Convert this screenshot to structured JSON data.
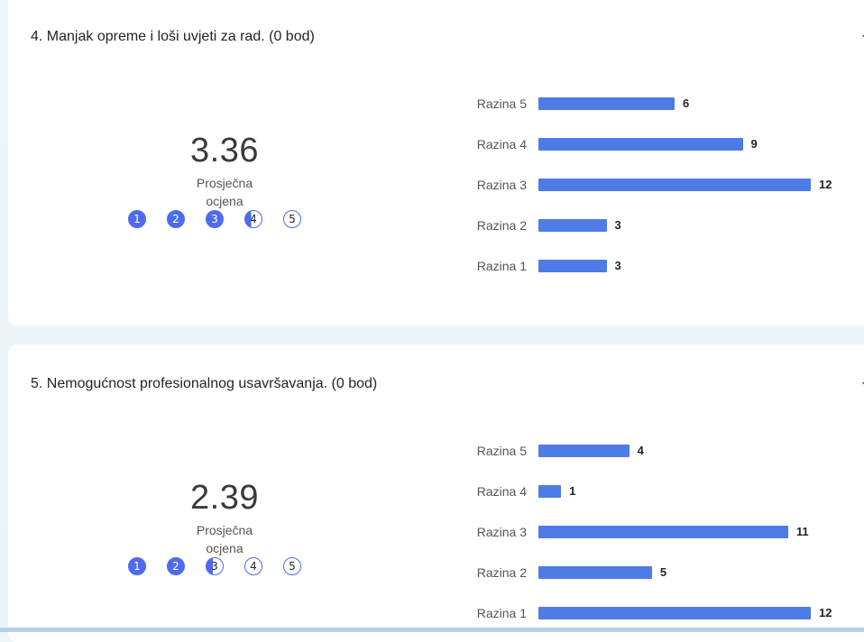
{
  "questions": [
    {
      "title": "4. Manjak opreme i loši uvjeti za rad. (0 bod)",
      "average": "3.36",
      "average_value": 3.36,
      "average_label": "Prosječna ocjena",
      "rating_circles": [
        "1",
        "2",
        "3",
        "4",
        "5"
      ],
      "bars": [
        {
          "label": "Razina 5",
          "count": 6
        },
        {
          "label": "Razina 4",
          "count": 9
        },
        {
          "label": "Razina 3",
          "count": 12
        },
        {
          "label": "Razina 2",
          "count": 3
        },
        {
          "label": "Razina 1",
          "count": 3
        }
      ]
    },
    {
      "title": "5. Nemogućnost profesionalnog usavršavanja. (0 bod)",
      "average": "2.39",
      "average_value": 2.39,
      "average_label": "Prosječna ocjena",
      "rating_circles": [
        "1",
        "2",
        "3",
        "4",
        "5"
      ],
      "bars": [
        {
          "label": "Razina 5",
          "count": 4
        },
        {
          "label": "Razina 4",
          "count": 1
        },
        {
          "label": "Razina 3",
          "count": 11
        },
        {
          "label": "Razina 2",
          "count": 5
        },
        {
          "label": "Razina 1",
          "count": 12
        }
      ]
    }
  ],
  "colors": {
    "accent": "#4f6bed",
    "bar": "#4f7be6"
  },
  "icons": {
    "chevron": "chevron-down-icon"
  }
}
